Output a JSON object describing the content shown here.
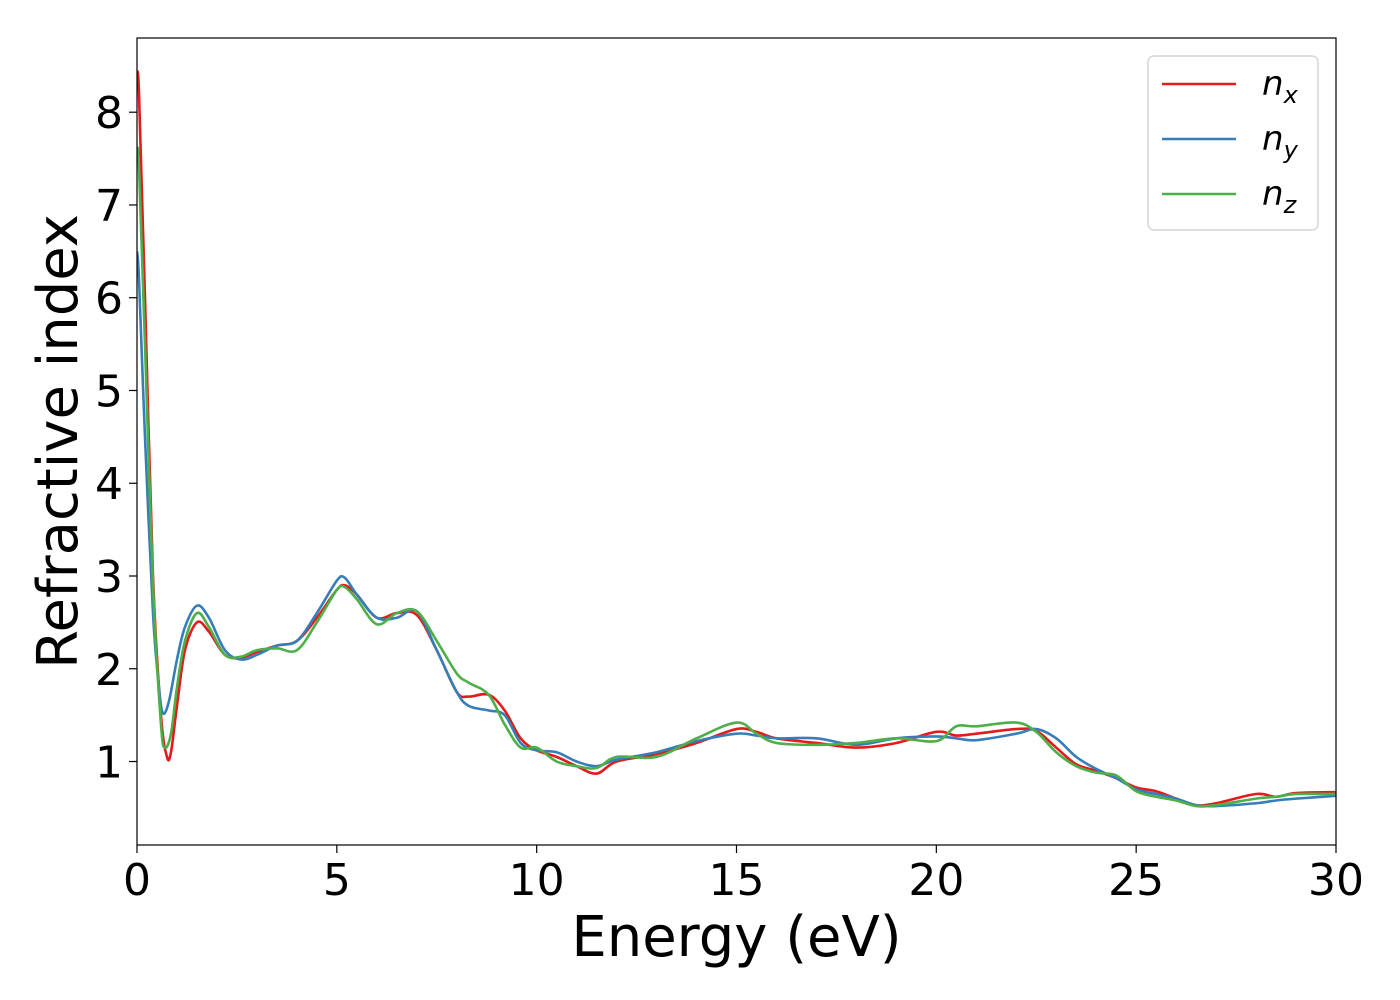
{
  "chart_data": {
    "type": "line",
    "xlabel": "Energy (eV)",
    "ylabel": "Refractive index",
    "xlim": [
      0,
      30
    ],
    "ylim": [
      0.1,
      8.8
    ],
    "xticks": [
      0,
      5,
      10,
      15,
      20,
      25,
      30
    ],
    "xtick_labels": [
      "0",
      "5",
      "10",
      "15",
      "20",
      "25",
      "30"
    ],
    "yticks": [
      1,
      2,
      3,
      4,
      5,
      6,
      7,
      8
    ],
    "ytick_labels": [
      "1",
      "2",
      "3",
      "4",
      "5",
      "6",
      "7",
      "8"
    ],
    "grid": false,
    "legend_position": "top-right",
    "series": [
      {
        "name": "n",
        "subscript": "x",
        "color": "#e41a1c",
        "x": [
          0,
          0.05,
          0.2,
          0.4,
          0.6,
          0.75,
          0.85,
          1.0,
          1.2,
          1.5,
          1.8,
          2.2,
          2.6,
          3.0,
          3.5,
          4.0,
          4.5,
          5.0,
          5.2,
          5.5,
          6.0,
          6.5,
          7.0,
          7.5,
          8.0,
          8.3,
          8.8,
          9.2,
          9.6,
          10.0,
          10.5,
          11.0,
          11.5,
          12.0,
          13.0,
          14.0,
          15.0,
          15.5,
          16.0,
          17.0,
          18.0,
          19.0,
          20.0,
          20.5,
          21.0,
          22.0,
          22.5,
          23.0,
          23.5,
          24.0,
          24.5,
          25.0,
          25.5,
          26.0,
          26.5,
          27.0,
          28.0,
          28.5,
          29.0,
          30.0
        ],
        "y": [
          8.4,
          8.2,
          6.0,
          3.0,
          1.5,
          1.05,
          1.1,
          1.6,
          2.2,
          2.5,
          2.4,
          2.15,
          2.12,
          2.18,
          2.25,
          2.3,
          2.55,
          2.85,
          2.9,
          2.8,
          2.55,
          2.6,
          2.58,
          2.2,
          1.75,
          1.7,
          1.72,
          1.55,
          1.25,
          1.12,
          1.05,
          0.95,
          0.87,
          1.0,
          1.08,
          1.2,
          1.35,
          1.32,
          1.25,
          1.2,
          1.15,
          1.2,
          1.32,
          1.28,
          1.3,
          1.35,
          1.33,
          1.15,
          0.97,
          0.9,
          0.82,
          0.72,
          0.68,
          0.6,
          0.53,
          0.55,
          0.65,
          0.62,
          0.66,
          0.67
        ]
      },
      {
        "name": "n",
        "subscript": "y",
        "color": "#377eb8",
        "x": [
          0,
          0.05,
          0.2,
          0.4,
          0.55,
          0.65,
          0.8,
          1.0,
          1.2,
          1.5,
          1.8,
          2.2,
          2.6,
          3.0,
          3.5,
          4.0,
          4.5,
          5.0,
          5.2,
          5.5,
          6.0,
          6.5,
          7.0,
          7.5,
          8.0,
          8.3,
          8.8,
          9.2,
          9.6,
          10.0,
          10.5,
          11.0,
          11.5,
          12.0,
          13.0,
          14.0,
          15.0,
          15.5,
          16.0,
          17.0,
          18.0,
          19.0,
          20.0,
          20.5,
          21.0,
          22.0,
          22.5,
          23.0,
          23.5,
          24.0,
          24.5,
          25.0,
          25.5,
          26.0,
          26.5,
          27.0,
          28.0,
          28.5,
          29.0,
          30.0
        ],
        "y": [
          6.5,
          6.2,
          4.5,
          2.6,
          1.8,
          1.52,
          1.65,
          2.1,
          2.45,
          2.68,
          2.55,
          2.2,
          2.1,
          2.15,
          2.25,
          2.3,
          2.6,
          2.95,
          2.98,
          2.8,
          2.55,
          2.55,
          2.62,
          2.2,
          1.75,
          1.6,
          1.55,
          1.5,
          1.2,
          1.12,
          1.1,
          1.0,
          0.95,
          1.02,
          1.1,
          1.22,
          1.3,
          1.28,
          1.25,
          1.25,
          1.18,
          1.25,
          1.27,
          1.25,
          1.23,
          1.3,
          1.35,
          1.25,
          1.05,
          0.92,
          0.82,
          0.7,
          0.65,
          0.6,
          0.53,
          0.52,
          0.55,
          0.58,
          0.6,
          0.63
        ]
      },
      {
        "name": "n",
        "subscript": "z",
        "color": "#4daf4a",
        "x": [
          0,
          0.05,
          0.2,
          0.4,
          0.6,
          0.7,
          0.85,
          1.0,
          1.2,
          1.5,
          1.8,
          2.2,
          2.6,
          3.0,
          3.5,
          4.0,
          4.5,
          5.0,
          5.2,
          5.5,
          6.0,
          6.5,
          7.0,
          7.5,
          8.0,
          8.3,
          8.8,
          9.2,
          9.6,
          10.0,
          10.5,
          11.0,
          11.5,
          12.0,
          13.0,
          14.0,
          15.0,
          15.5,
          16.0,
          17.0,
          18.0,
          19.0,
          20.0,
          20.5,
          21.0,
          22.0,
          22.5,
          23.0,
          23.5,
          24.0,
          24.5,
          25.0,
          25.5,
          26.0,
          26.5,
          27.0,
          28.0,
          28.5,
          29.0,
          30.0
        ],
        "y": [
          7.6,
          7.4,
          5.5,
          2.9,
          1.4,
          1.15,
          1.3,
          1.8,
          2.3,
          2.6,
          2.45,
          2.15,
          2.13,
          2.2,
          2.22,
          2.2,
          2.5,
          2.85,
          2.88,
          2.75,
          2.48,
          2.6,
          2.62,
          2.3,
          1.95,
          1.85,
          1.72,
          1.4,
          1.15,
          1.15,
          1.0,
          0.95,
          0.93,
          1.05,
          1.05,
          1.25,
          1.42,
          1.3,
          1.2,
          1.18,
          1.2,
          1.25,
          1.22,
          1.38,
          1.38,
          1.42,
          1.32,
          1.1,
          0.95,
          0.88,
          0.85,
          0.68,
          0.62,
          0.58,
          0.52,
          0.53,
          0.6,
          0.62,
          0.65,
          0.65
        ]
      }
    ]
  }
}
